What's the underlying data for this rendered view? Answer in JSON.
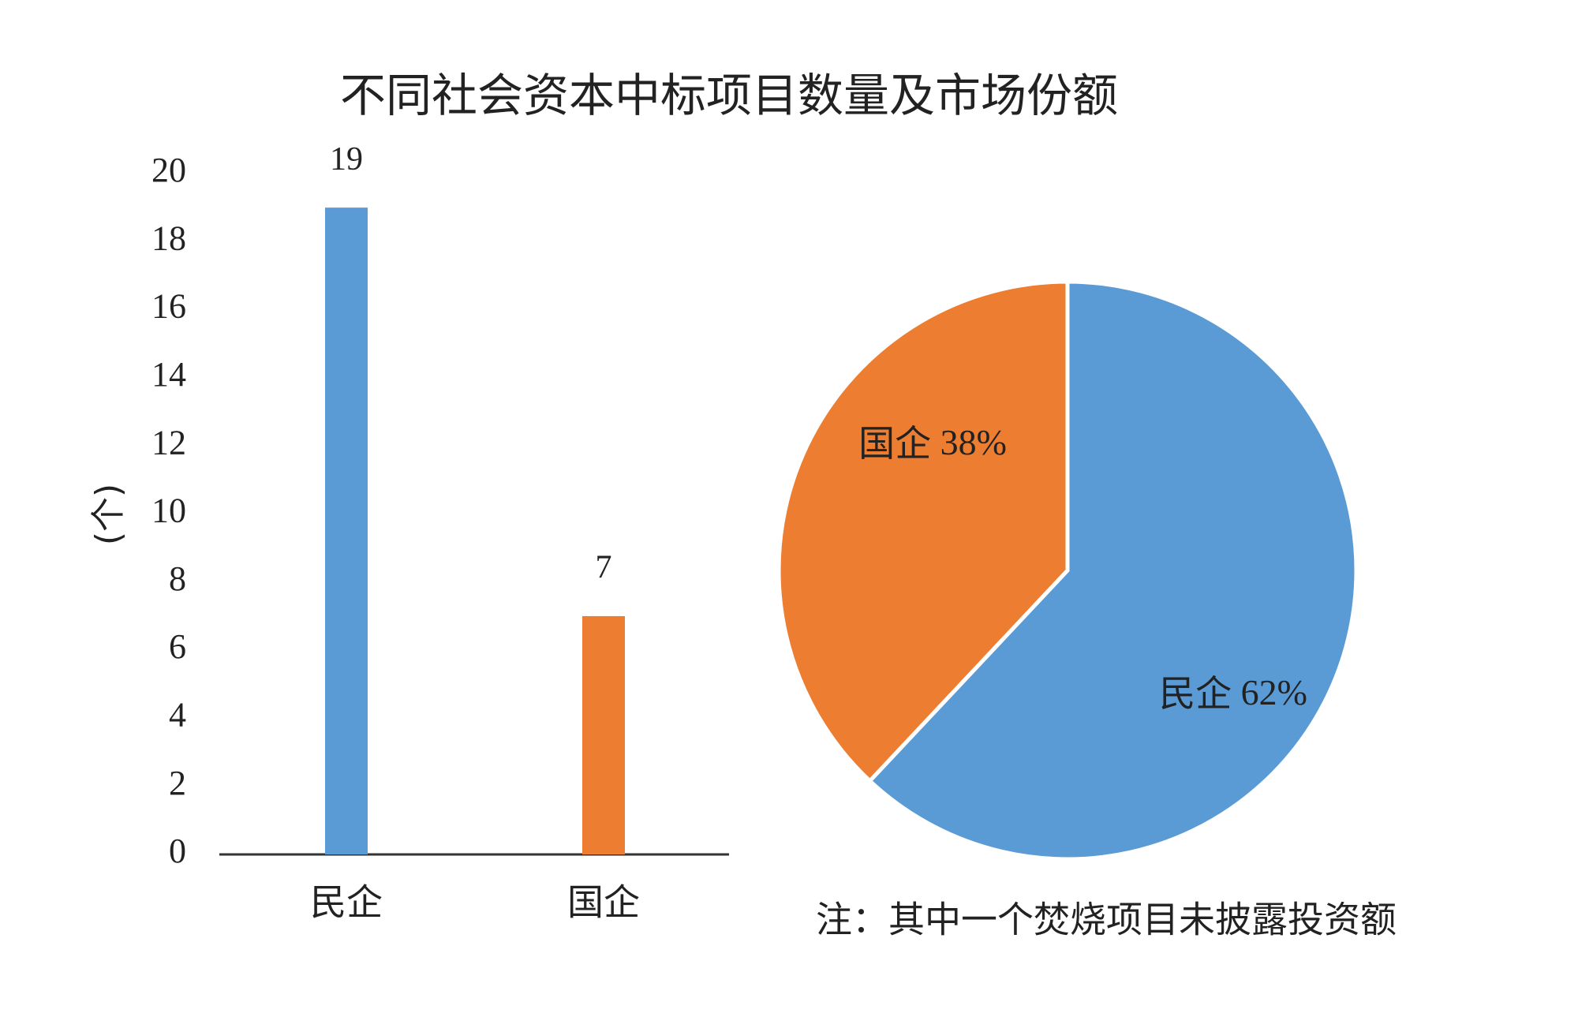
{
  "chart_data": [
    {
      "type": "bar",
      "title": "不同社会资本中标项目数量及市场份额",
      "y_label": "(个)",
      "categories": [
        "民企",
        "国企"
      ],
      "values": [
        19,
        7
      ],
      "colors": [
        "#5b9bd5",
        "#ed7d31"
      ],
      "ylim": [
        0,
        20
      ],
      "yticks": [
        0,
        2,
        4,
        6,
        8,
        10,
        12,
        14,
        16,
        18,
        20
      ]
    },
    {
      "type": "pie",
      "categories": [
        "民企",
        "国企"
      ],
      "values": [
        62,
        38
      ],
      "value_labels": [
        "62%",
        "38%"
      ],
      "colors": [
        "#5b9bd5",
        "#ed7d31"
      ],
      "annotation": "注：其中一个焚烧项目未披露投资额"
    }
  ]
}
